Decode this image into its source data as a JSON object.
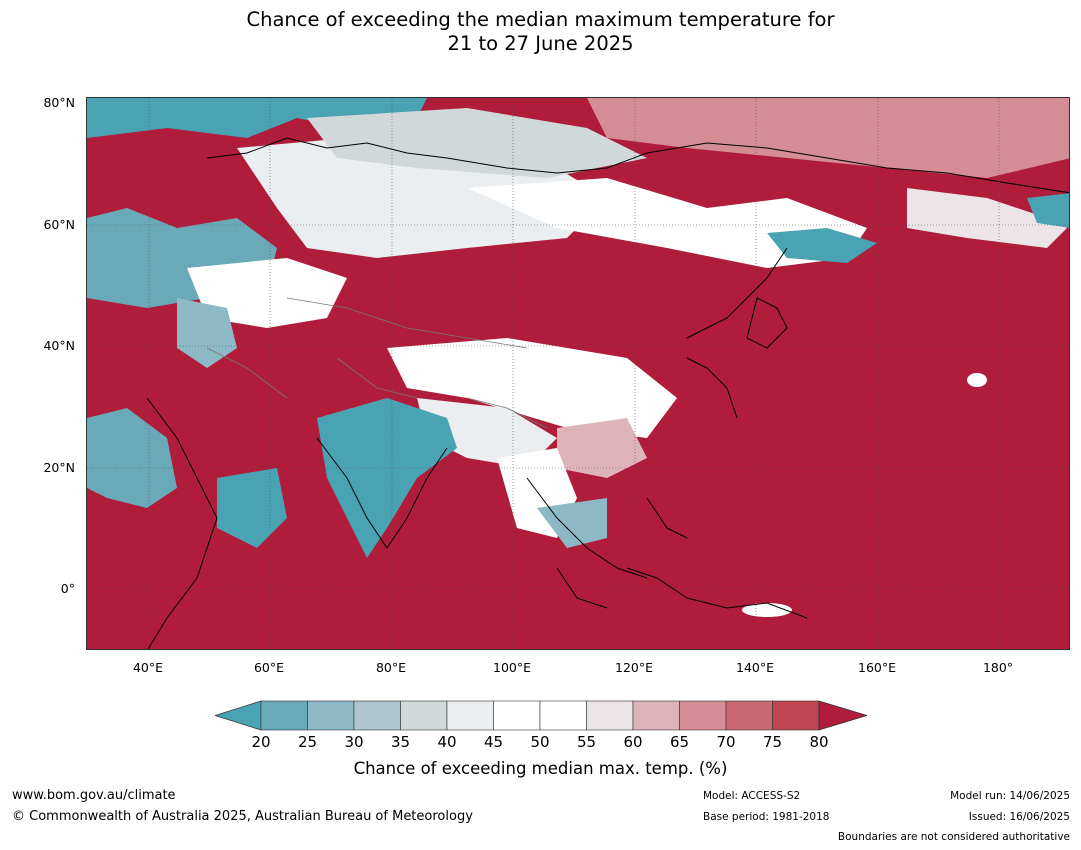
{
  "title_line1": "Chance of exceeding the median maximum temperature for",
  "title_line2": "21 to 27 June 2025",
  "lat_labels": [
    "80°N",
    "60°N",
    "40°N",
    "20°N",
    "0°"
  ],
  "lon_labels": [
    "40°E",
    "60°E",
    "80°E",
    "100°E",
    "120°E",
    "140°E",
    "160°E",
    "180°"
  ],
  "colorbar": {
    "ticks": [
      "20",
      "25",
      "30",
      "35",
      "40",
      "45",
      "50",
      "55",
      "60",
      "65",
      "70",
      "75",
      "80"
    ],
    "colors": [
      "#4aa3b3",
      "#6aa9b8",
      "#8cb9c5",
      "#adc5cc",
      "#d0d8da",
      "#eaeef0",
      "#ffffff",
      "#ffffff",
      "#ebe5e7",
      "#deb4bb",
      "#d48c95",
      "#c86870",
      "#bf4652",
      "#b01d3b"
    ],
    "label": "Chance of exceeding median max. temp. (%)"
  },
  "footer": {
    "website": "www.bom.gov.au/climate",
    "copyright": "© Commonwealth of Australia 2025, Australian Bureau of Meteorology",
    "model": "Model: ACCESS-S2",
    "base_period": "Base period: 1981-2018",
    "model_run": "Model run: 14/06/2025",
    "issued": "Issued: 16/06/2025",
    "disclaimer": "Boundaries are not considered authoritative"
  },
  "map_colors": {
    "ocean_hot": "#b01d3b",
    "cool": "#4aa3b3",
    "neutral": "#ffffff",
    "light_pink": "#deb4bb",
    "pink": "#d48c95",
    "grey_blue": "#adc5cc"
  }
}
